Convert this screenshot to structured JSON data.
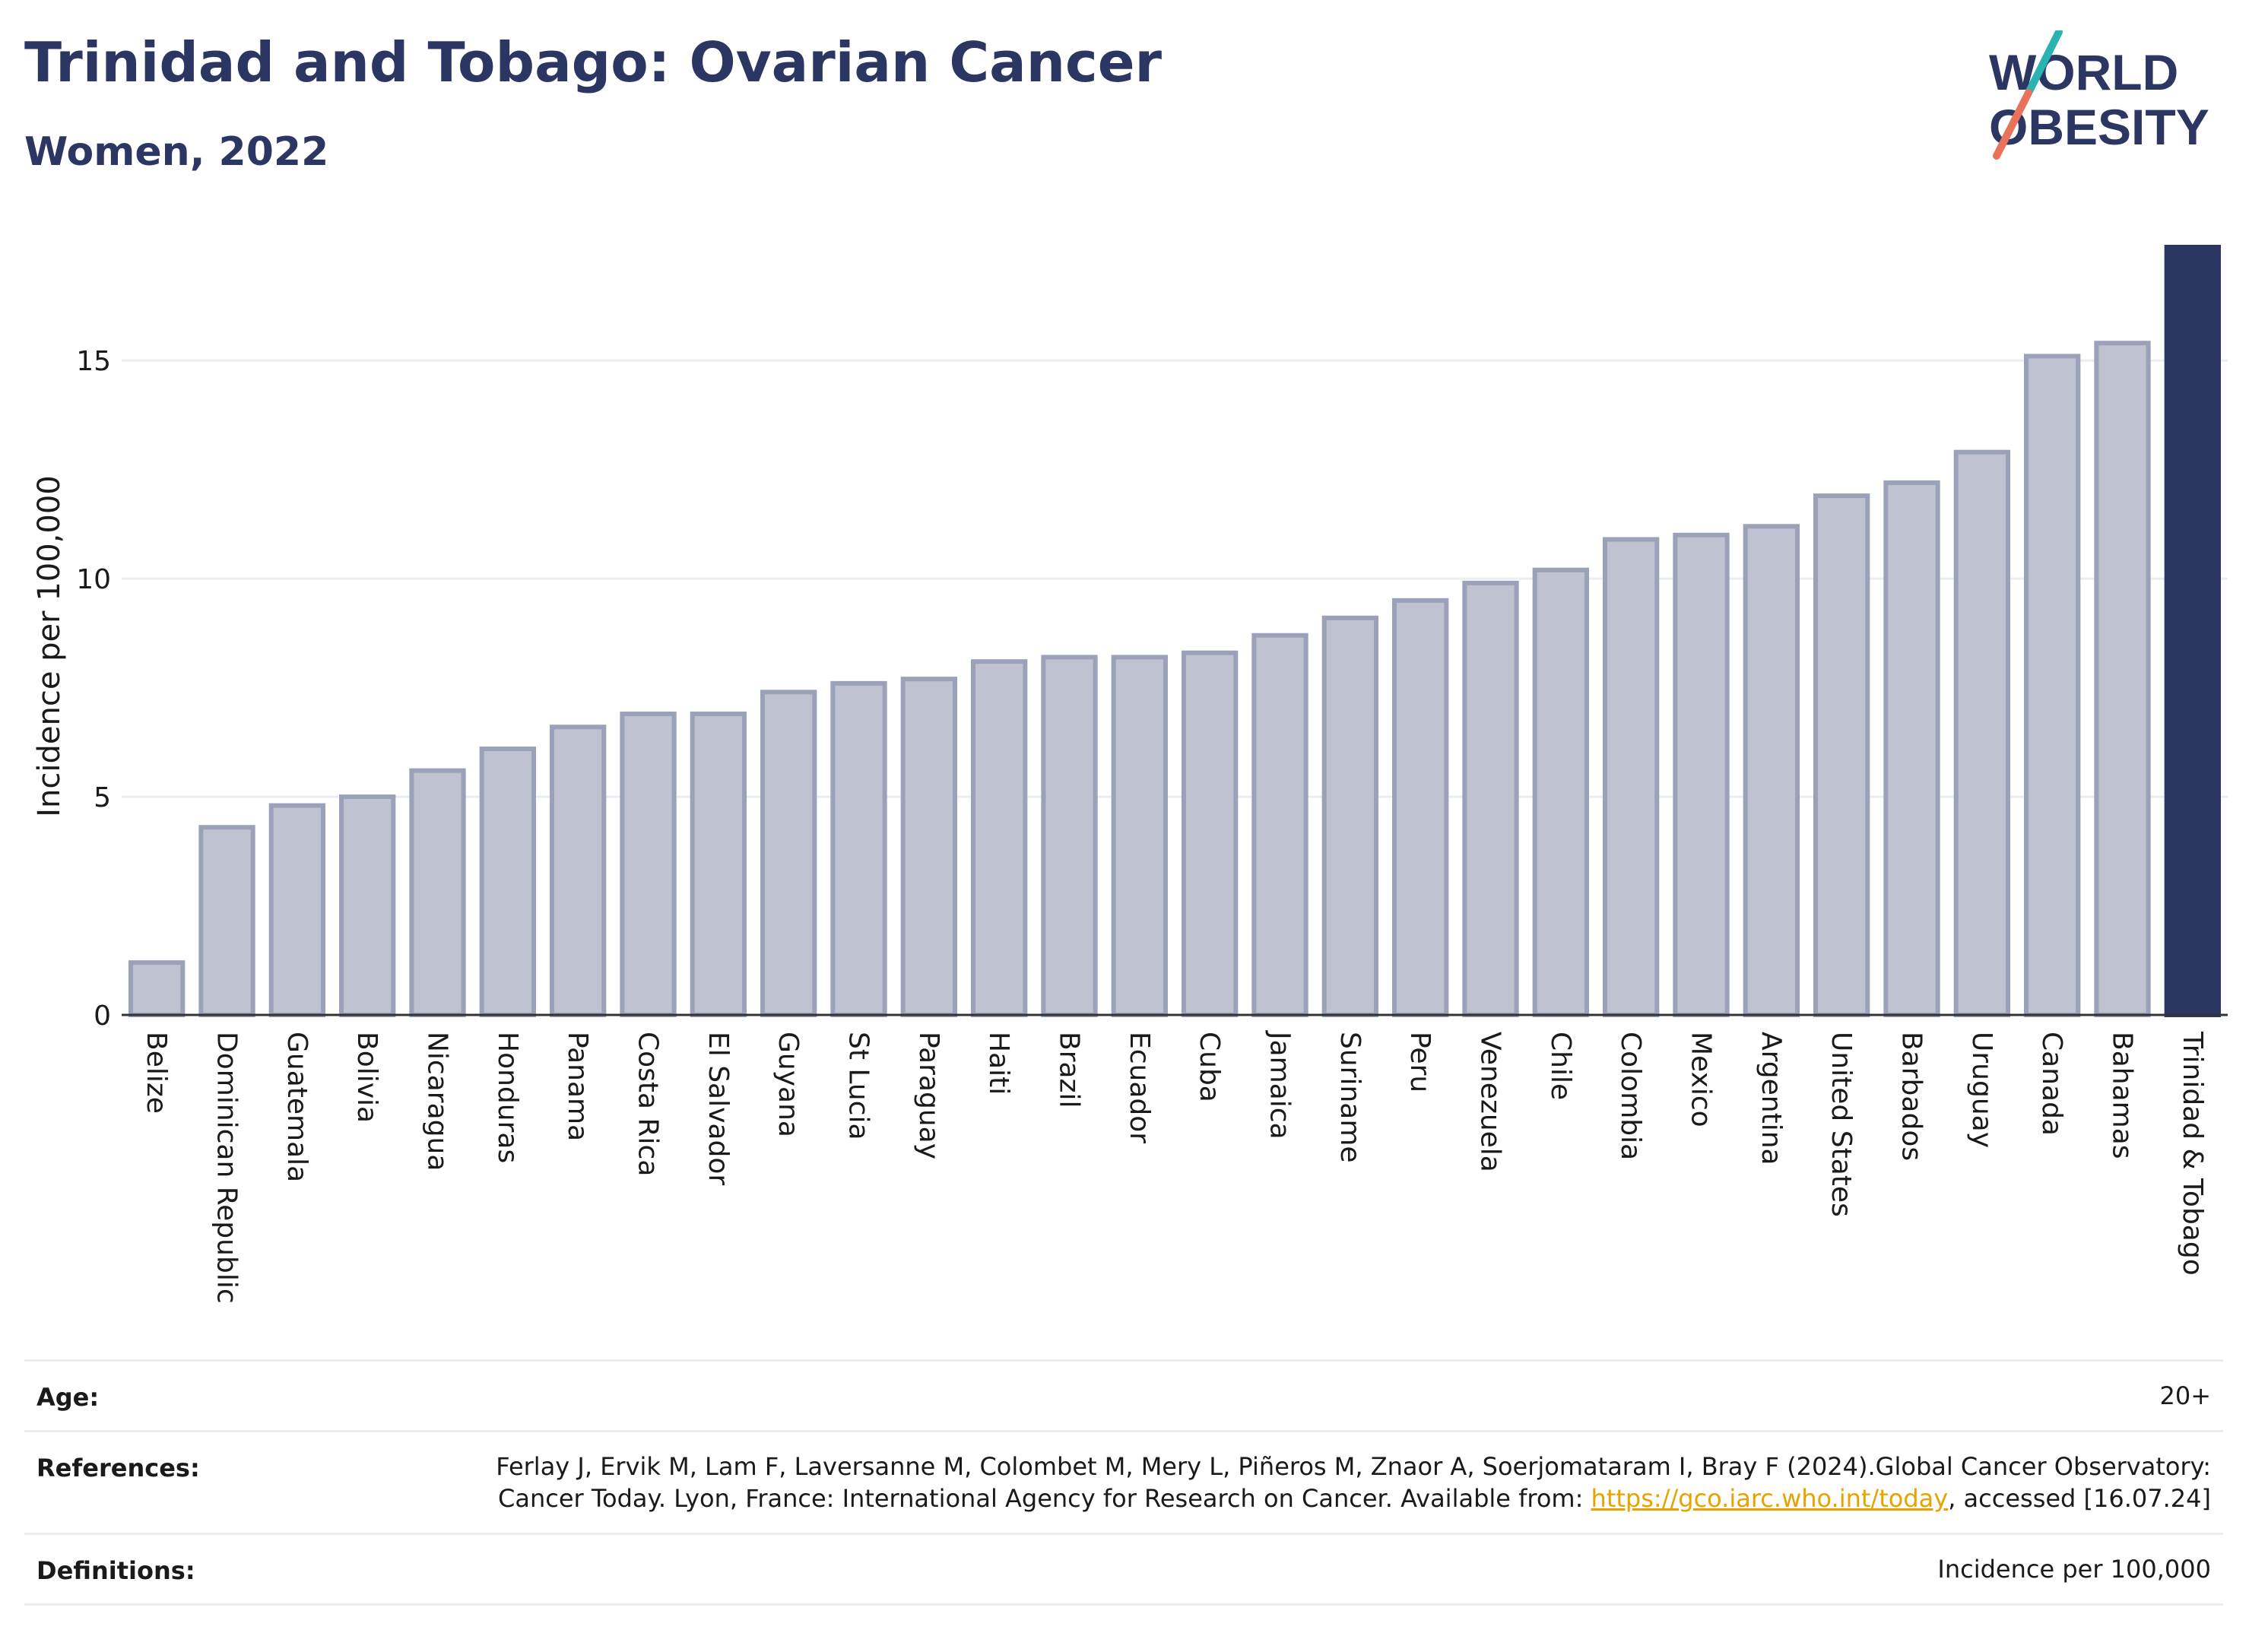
{
  "header": {
    "title": "Trinidad and Tobago: Ovarian Cancer",
    "subtitle": "Women, 2022"
  },
  "logo": {
    "line1": "WORLD",
    "line2": "OBESITY"
  },
  "colors": {
    "highlight": "#2b3762",
    "bar_fill": "#bfc3d1",
    "bar_stroke": "#9ba1b8",
    "grid": "#e9eef2",
    "link": "#e6a400",
    "logo_teal": "#2bb3b1",
    "logo_coral": "#e8735a"
  },
  "chart_data": {
    "type": "bar",
    "ylabel": "Incidence per 100,000",
    "ylim": [
      0,
      17.6
    ],
    "yticks": [
      0,
      5,
      10,
      15
    ],
    "grid": true,
    "highlight_category": "Trinidad & Tobago",
    "categories": [
      "Belize",
      "Dominican Republic",
      "Guatemala",
      "Bolivia",
      "Nicaragua",
      "Honduras",
      "Panama",
      "Costa Rica",
      "El Salvador",
      "Guyana",
      "St Lucia",
      "Paraguay",
      "Haiti",
      "Brazil",
      "Ecuador",
      "Cuba",
      "Jamaica",
      "Suriname",
      "Peru",
      "Venezuela",
      "Chile",
      "Colombia",
      "Mexico",
      "Argentina",
      "United States",
      "Barbados",
      "Uruguay",
      "Canada",
      "Bahamas",
      "Trinidad & Tobago"
    ],
    "values": [
      1.2,
      4.3,
      4.8,
      5.0,
      5.6,
      6.1,
      6.6,
      6.9,
      6.9,
      7.4,
      7.6,
      7.7,
      8.1,
      8.2,
      8.2,
      8.3,
      8.7,
      9.1,
      9.5,
      9.9,
      10.2,
      10.9,
      11.0,
      11.2,
      11.9,
      12.2,
      12.9,
      15.1,
      15.4,
      17.6
    ]
  },
  "info": {
    "age_label": "Age:",
    "age_value": "20+",
    "references_label": "References:",
    "references_text_1": "Ferlay J, Ervik M, Lam F, Laversanne M, Colombet M, Mery L, Piñeros M, Znaor A, Soerjomataram I, Bray F (2024).Global Cancer Observatory: Cancer Today. Lyon, France: International Agency for Research on Cancer. Available from: ",
    "references_link": "https://gco.iarc.who.int/today",
    "references_text_2": ", accessed [16.07.24]",
    "definitions_label": "Definitions:",
    "definitions_value": "Incidence per 100,000"
  }
}
